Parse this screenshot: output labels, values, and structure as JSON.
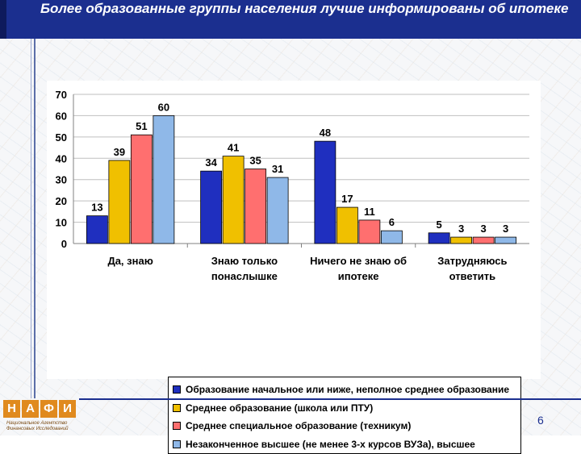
{
  "header": {
    "title": "Более образованные группы населения лучше информированы об ипотеке"
  },
  "colors": {
    "header_bg": "#1b2f8f",
    "series": [
      "#1f2fbf",
      "#f0c000",
      "#ff6f6f",
      "#8fb8e8"
    ]
  },
  "chart_data": {
    "type": "bar",
    "categories": [
      [
        "Да, знаю"
      ],
      [
        "Знаю только",
        "понаслышке"
      ],
      [
        "Ничего не знаю об",
        "ипотеке"
      ],
      [
        "Затрудняюсь",
        "ответить"
      ]
    ],
    "series": [
      {
        "name": "Образование начальное или ниже, неполное среднее образование",
        "values": [
          13,
          34,
          48,
          5
        ]
      },
      {
        "name": "Среднее образование (школа или ПТУ)",
        "values": [
          39,
          41,
          17,
          3
        ]
      },
      {
        "name": "Среднее специальное образование (техникум)",
        "values": [
          51,
          35,
          11,
          3
        ]
      },
      {
        "name": "Незаконченное высшее (не менее 3-х курсов ВУЗа), высшее",
        "values": [
          60,
          31,
          6,
          3
        ]
      }
    ],
    "yticks": [
      "0",
      "10",
      "20",
      "30",
      "40",
      "50",
      "60",
      "70"
    ],
    "ylim": [
      0,
      70
    ],
    "grid": true,
    "legend_position": "bottom"
  },
  "logo": {
    "letters": [
      "Н",
      "А",
      "Ф",
      "И"
    ],
    "caption": "Национальное Агентство Финансовых Исследований"
  },
  "footer": {
    "page_number": "6"
  }
}
